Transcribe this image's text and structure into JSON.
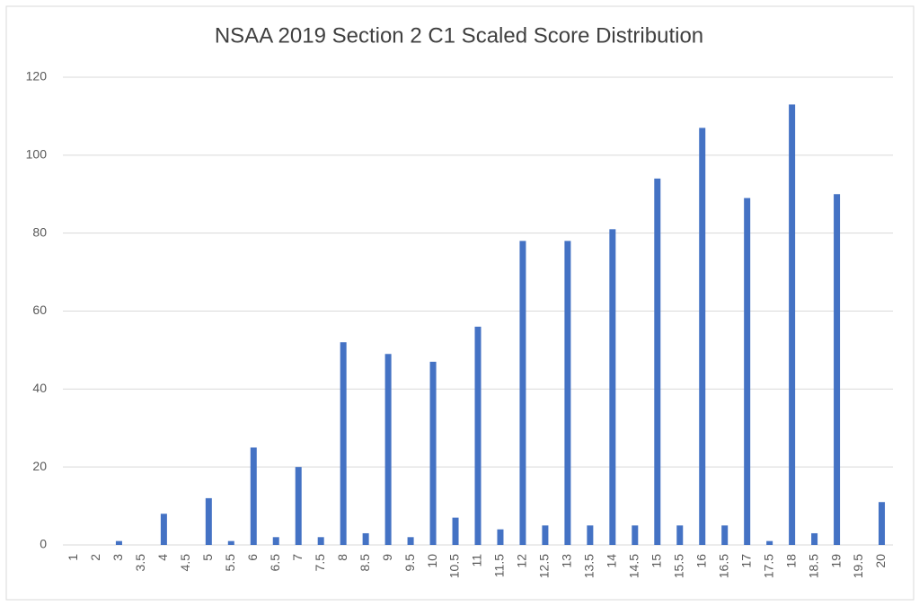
{
  "chart_data": {
    "type": "bar",
    "title": "NSAA 2019 Section 2 C1 Scaled Score Distribution",
    "categories": [
      "1",
      "2",
      "3",
      "3.5",
      "4",
      "4.5",
      "5",
      "5.5",
      "6",
      "6.5",
      "7",
      "7.5",
      "8",
      "8.5",
      "9",
      "9.5",
      "10",
      "10.5",
      "11",
      "11.5",
      "12",
      "12.5",
      "13",
      "13.5",
      "14",
      "14.5",
      "15",
      "15.5",
      "16",
      "16.5",
      "17",
      "17.5",
      "18",
      "18.5",
      "19",
      "19.5",
      "20"
    ],
    "values": [
      0,
      0,
      1,
      0,
      8,
      0,
      12,
      1,
      25,
      2,
      20,
      2,
      52,
      3,
      49,
      2,
      47,
      7,
      56,
      4,
      78,
      5,
      78,
      5,
      81,
      5,
      94,
      5,
      107,
      5,
      89,
      1,
      113,
      3,
      90,
      0,
      11
    ],
    "color": "#4472c4",
    "ylim": [
      0,
      120
    ],
    "yticks": [
      0,
      20,
      40,
      60,
      80,
      100,
      120
    ],
    "grid": true
  }
}
